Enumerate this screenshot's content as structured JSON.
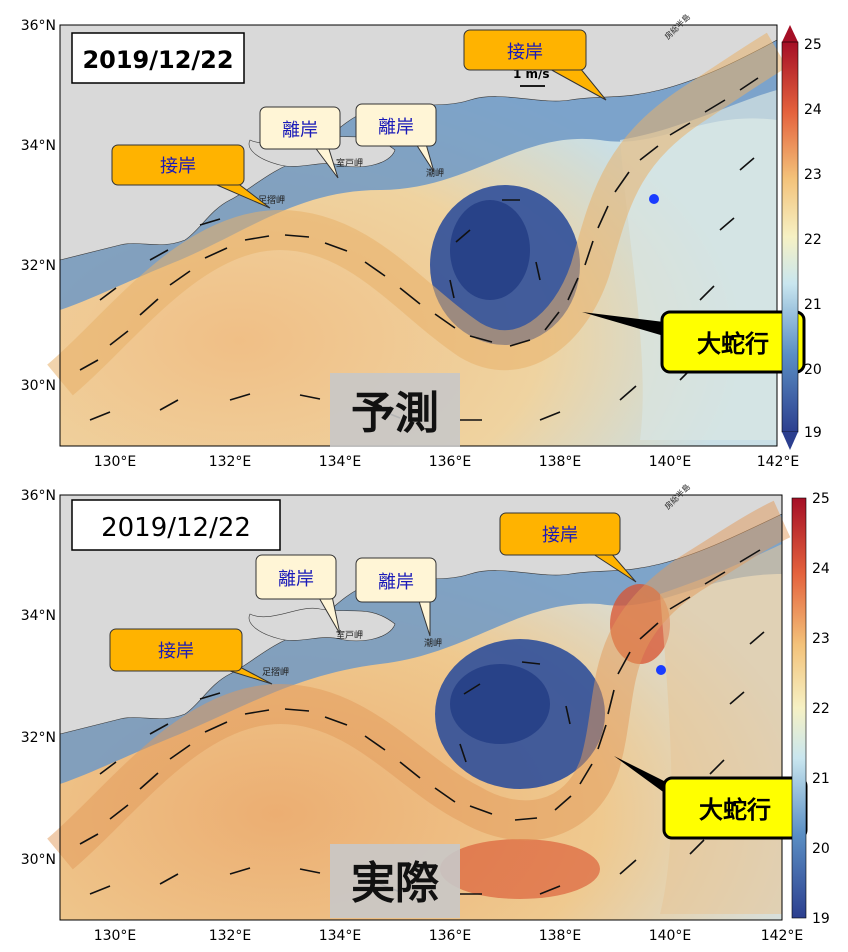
{
  "panels": [
    {
      "date": "2019/12/22",
      "label": "予測",
      "callouts": {
        "setsugan_west": "接岸",
        "rigan_1": "離岸",
        "rigan_2": "離岸",
        "setsugan_east": "接岸",
        "meander": "大蛇行"
      },
      "place_labels": {
        "ashizuri": "足摺岬",
        "muroto": "室戸岬",
        "shionomisaki": "潮岬",
        "boso": "房総半島"
      },
      "scale_label": "1 m/s",
      "colorbar": {
        "min": 19,
        "max": 25,
        "ticks": [
          "25",
          "24",
          "23",
          "22",
          "21",
          "20",
          "19"
        ],
        "extend_arrows": true
      }
    },
    {
      "date": "2019/12/22",
      "label": "実際",
      "callouts": {
        "setsugan_west": "接岸",
        "rigan_1": "離岸",
        "rigan_2": "離岸",
        "setsugan_east": "接岸",
        "meander": "大蛇行"
      },
      "place_labels": {
        "ashizuri": "足摺岬",
        "muroto": "室戸岬",
        "shionomisaki": "潮岬",
        "boso": "房総半島"
      },
      "colorbar": {
        "min": 19,
        "max": 25,
        "ticks": [
          "25",
          "24",
          "23",
          "22",
          "21",
          "20",
          "19"
        ],
        "extend_arrows": false
      }
    }
  ],
  "axes": {
    "x_ticks": [
      "130°E",
      "132°E",
      "134°E",
      "136°E",
      "138°E",
      "140°E",
      "142°E"
    ],
    "y_ticks": [
      "36°N",
      "34°N",
      "32°N",
      "30°N"
    ]
  },
  "colors": {
    "land": "#d9d9d9",
    "callout_orange": "#ffb300",
    "callout_cream": "#fff5d6",
    "callout_yellow": "#ffff00",
    "callout_text_blue": "#1a1ab8",
    "point_blue": "#1a3cff"
  }
}
